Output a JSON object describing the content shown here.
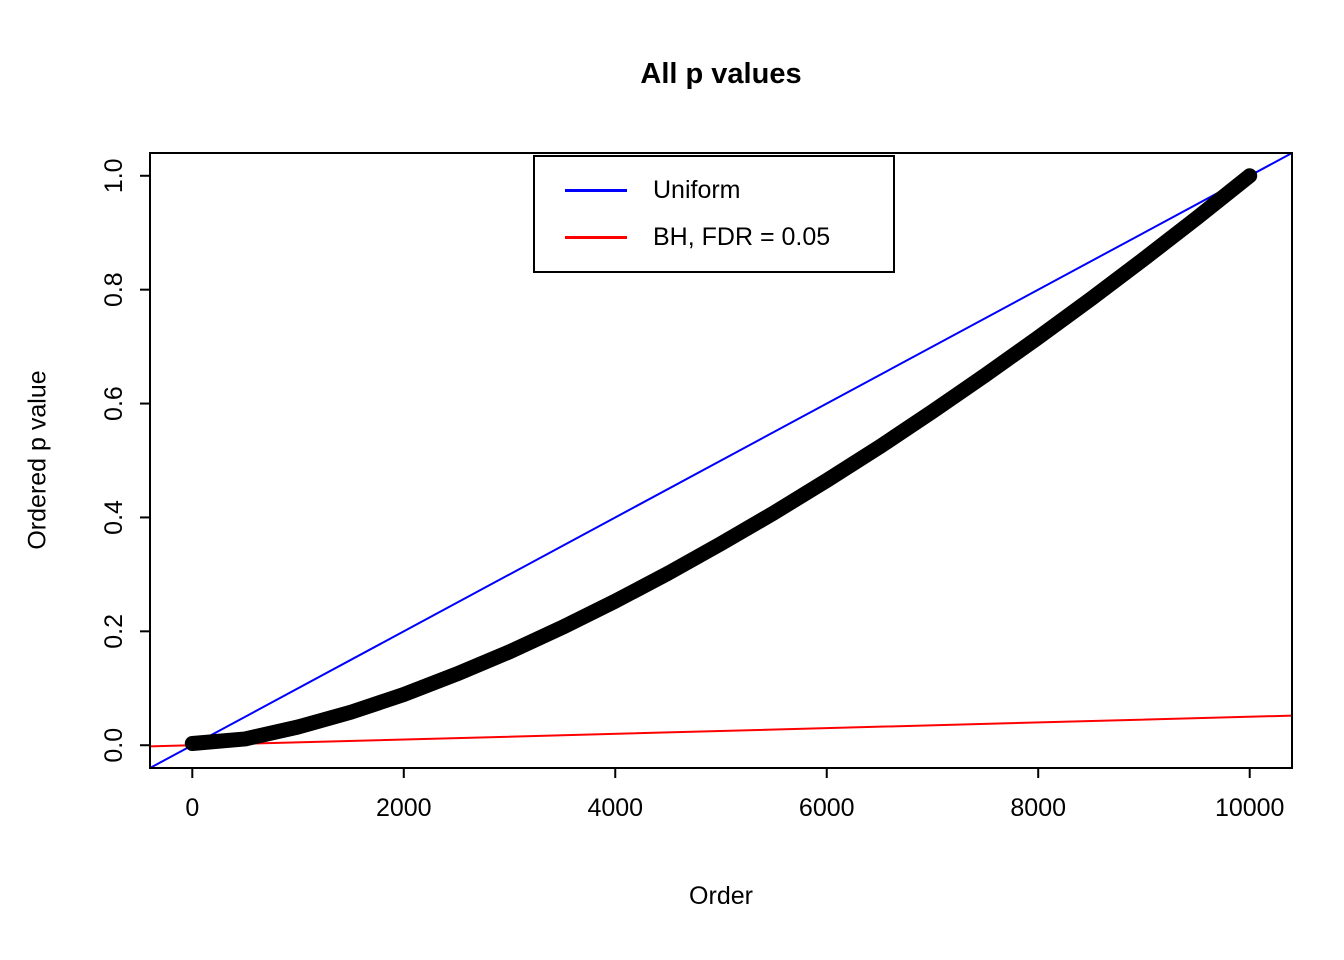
{
  "title": "All p values",
  "xlabel": "Order",
  "ylabel": "Ordered p value",
  "legend": {
    "items": [
      {
        "label": "Uniform",
        "color": "#0000ff"
      },
      {
        "label": "BH, FDR = 0.05",
        "color": "#ff0000"
      }
    ]
  },
  "colors": {
    "background": "#ffffff",
    "axis": "#000000",
    "points": "#000000",
    "uniform_line": "#0000ff",
    "bh_line": "#ff0000"
  },
  "chart_data": {
    "type": "scatter",
    "title": "All p values",
    "xlabel": "Order",
    "ylabel": "Ordered p value",
    "xlim": [
      -400,
      10400
    ],
    "ylim": [
      -0.04,
      1.04
    ],
    "x_ticks": [
      0,
      2000,
      4000,
      6000,
      8000,
      10000
    ],
    "y_ticks": [
      0.0,
      0.2,
      0.4,
      0.6,
      0.8,
      1.0
    ],
    "grid": false,
    "legend_position": "top-center",
    "series": [
      {
        "key": "uniform-line",
        "name": "Uniform",
        "type": "line",
        "color": "#0000ff",
        "width": 2,
        "slope": 0.0001,
        "intercept": 0,
        "x": [
          -400,
          10400
        ],
        "y": [
          -0.04,
          1.04
        ]
      },
      {
        "key": "bh-line",
        "name": "BH, FDR = 0.05",
        "type": "line",
        "color": "#ff0000",
        "width": 2,
        "slope": 5e-06,
        "intercept": 0,
        "x": [
          -400,
          10400
        ],
        "y": [
          -0.002,
          0.052
        ]
      },
      {
        "key": "pvalue-curve",
        "name": "Ordered p values",
        "type": "points",
        "color": "#000000",
        "width": 15,
        "n_total": 10000,
        "x": [
          0,
          500,
          1000,
          1500,
          2000,
          2500,
          3000,
          3500,
          4000,
          4500,
          5000,
          5500,
          6000,
          6500,
          7000,
          7500,
          8000,
          8500,
          9000,
          9500,
          10000
        ],
        "y": [
          0.003,
          0.011,
          0.032,
          0.058,
          0.089,
          0.125,
          0.164,
          0.207,
          0.253,
          0.302,
          0.354,
          0.408,
          0.465,
          0.524,
          0.586,
          0.65,
          0.716,
          0.784,
          0.854,
          0.926,
          1.0
        ]
      }
    ]
  }
}
